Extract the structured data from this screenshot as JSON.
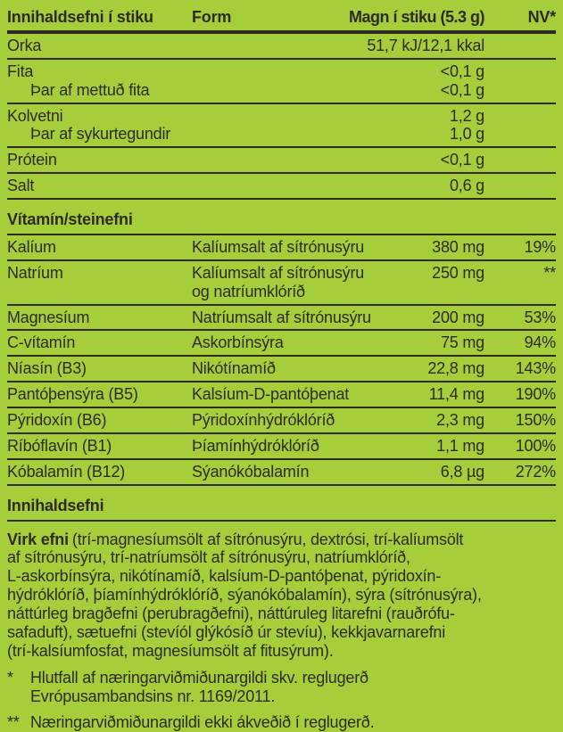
{
  "colors": {
    "background": "#a6ce3a",
    "ink": "#2e2b25"
  },
  "table": {
    "headers": {
      "ingredient": "Innihaldsefni í stiku",
      "form": "Form",
      "amount": "Magn í stiku (5.3 g)",
      "nv": "NV*"
    },
    "macro_rows": [
      {
        "name": "Orka",
        "value": "51,7 kJ/12,1 kkal"
      },
      {
        "name": "Fita",
        "value": "<0,1 g"
      },
      {
        "name": "Þar af mettuð fita",
        "value": "<0,1 g"
      },
      {
        "name": "Kolvetni",
        "value": "1,2 g"
      },
      {
        "name": "Þar af sykurtegundir",
        "value": "1,0 g"
      },
      {
        "name": "Prótein",
        "value": "<0,1 g"
      },
      {
        "name": "Salt",
        "value": "0,6 g"
      }
    ],
    "vitamins_heading": "Vítamín/steinefni",
    "vitamin_rows": [
      {
        "name": "Kalíum",
        "form": "Kalíumsalt af sítrónusýru",
        "amount": "380 mg",
        "nv": "19%"
      },
      {
        "name": "Natríum",
        "form": [
          "Kalíumsalt af sítrónusýru",
          "og natríumklóríð"
        ],
        "amount": "250 mg",
        "nv": "**"
      },
      {
        "name": "Magnesíum",
        "form": "Natríumsalt af sítrónusýru",
        "amount": "200 mg",
        "nv": "53%"
      },
      {
        "name": "C-vítamín",
        "form": "Askorbínsýra",
        "amount": "75 mg",
        "nv": "94%"
      },
      {
        "name": "Níasín (B3)",
        "form": "Nikótínamíð",
        "amount": "22,8 mg",
        "nv": "143%"
      },
      {
        "name": "Pantóþensýra (B5)",
        "form": "Kalsíum-D-pantóþenat",
        "amount": "11,4 mg",
        "nv": "190%"
      },
      {
        "name": "Pýridoxín (B6)",
        "form": "Pýridoxínhýdróklóríð",
        "amount": "2,3 mg",
        "nv": "150%"
      },
      {
        "name": "Ríbóflavín (B1)",
        "form": "Þíamínhýdróklóríð",
        "amount": "1,1 mg",
        "nv": "100%"
      },
      {
        "name": "Kóbalamín (B12)",
        "form": "Sýanókóbalamín",
        "amount": "6,8 µg",
        "nv": "272%"
      }
    ]
  },
  "ingredients": {
    "heading": "Innihaldsefni",
    "lead": "Virk efni",
    "text": [
      "(trí-magnesíumsölt af sítrónusýru, dextrósi, trí-kalíumsölt",
      "af sítrónusýru, trí-natríumsölt af sítrónusýru, natríumklóríð,",
      "L-askorbínsýra, nikótínamíð, kalsíum-D-pantóþenat, pýridoxín-",
      "hýdróklóríð, þíamínhýdróklóríð, sýanókóbalamín), sýra (sítrónusýra),",
      "náttúrleg bragðefni (perubragðefni), náttúruleg litarefni (rauðrófu-",
      "safaduft), sætuefni (stevíól glýkósíð úr stevíu), kekkjavarnarefni",
      "(trí-kalsíumfosfat, magnesíumsölt af fitusýrum)."
    ]
  },
  "footnotes": [
    {
      "marker": "*",
      "text": [
        "Hlutfall af næringarviðmiðunargildi skv. reglugerð",
        "Evrópusambandsins nr. 1169/2011."
      ]
    },
    {
      "marker": "**",
      "text": "Næringarviðmiðunargildi ekki ákveðið í reglugerð."
    }
  ]
}
